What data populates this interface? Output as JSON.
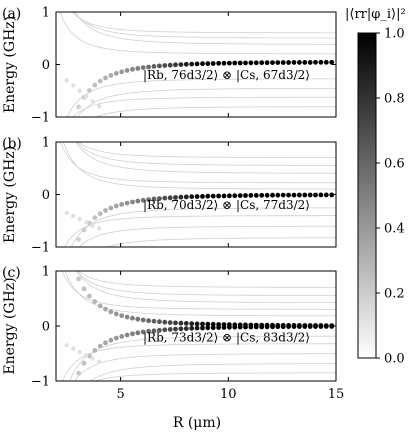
{
  "figure": {
    "x_axis_label": "R (μm)",
    "colorbar_label": "|⟨rr|φ_i⟩|²"
  },
  "chart_data": {
    "type": "scatter",
    "shared_x": {
      "label": "R (μm)",
      "xlim": [
        2,
        15
      ],
      "ticks": [
        5,
        10,
        15
      ]
    },
    "colorbar": {
      "label": "|⟨rr|φ_i⟩|²",
      "range": [
        0,
        1
      ],
      "ticks": [
        "0.0",
        "0.2",
        "0.4",
        "0.6",
        "0.8",
        "1.0"
      ],
      "colormap": "white-to-black"
    },
    "panels": [
      {
        "panel_label": "(a)",
        "ylabel": "Energy (GHz)",
        "ylim": [
          -1,
          1
        ],
        "yticks": [
          "−1",
          "0",
          "1"
        ],
        "annotation": "|Rb, 76d3/2⟩ ⊗ |Cs, 67d3/2⟩",
        "target_level": 0.05,
        "target_approach": "below",
        "curves_above": [
          0.6,
          0.5,
          0.38,
          0.2
        ],
        "curves_below": [
          -0.27,
          -0.45,
          -0.62,
          -0.8
        ]
      },
      {
        "panel_label": "(b)",
        "ylabel": "Energy (GHz)",
        "ylim": [
          -1,
          1
        ],
        "yticks": [
          "−1",
          "0",
          "1"
        ],
        "annotation": "|Rb, 70d3/2⟩ ⊗ |Cs, 77d3/2⟩",
        "target_level": 0.0,
        "target_approach": "below",
        "curves_above": [
          0.7,
          0.55,
          0.4,
          0.22,
          0.1
        ],
        "curves_below": [
          -0.25,
          -0.4,
          -0.6,
          -0.82
        ]
      },
      {
        "panel_label": "(c)",
        "ylabel": "Energy (GHz)",
        "ylim": [
          -1,
          1
        ],
        "yticks": [
          "−1",
          "0",
          "1"
        ],
        "annotation": "|Rb, 73d3/2⟩ ⊗ |Cs, 83d3/2⟩",
        "target_level": 0.0,
        "target_approach": "both",
        "curves_above": [
          0.7,
          0.55,
          0.42,
          0.3,
          0.18
        ],
        "curves_below": [
          -0.18,
          -0.32,
          -0.5,
          -0.68,
          -0.85
        ]
      }
    ]
  },
  "colors": {
    "axis": "#000000",
    "faint_curve": "#d0d0d0",
    "dot_max": "#000000",
    "dot_min": "#ffffff"
  }
}
